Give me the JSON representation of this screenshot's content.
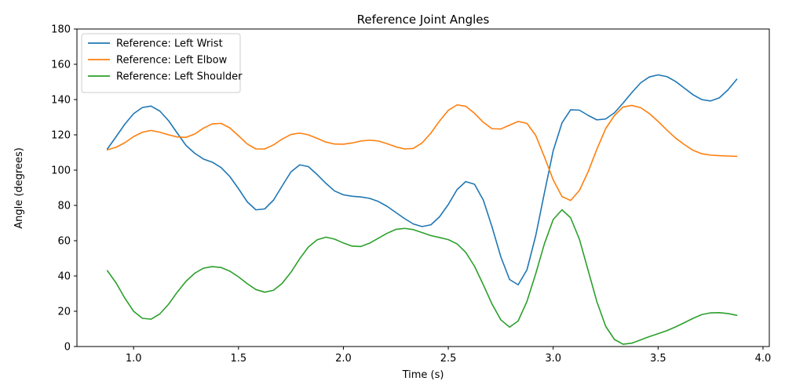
{
  "chart_data": {
    "type": "line",
    "title": "Reference Joint Angles",
    "xlabel": "Time (s)",
    "ylabel": "Angle (degrees)",
    "xlim": [
      0.73,
      4.03
    ],
    "ylim": [
      0,
      180
    ],
    "xticks": [
      1.0,
      1.5,
      2.0,
      2.5,
      3.0,
      3.5,
      4.0
    ],
    "xtick_labels": [
      "1.0",
      "1.5",
      "2.0",
      "2.5",
      "3.0",
      "3.5",
      "4.0"
    ],
    "yticks": [
      0,
      20,
      40,
      60,
      80,
      100,
      120,
      140,
      160,
      180
    ],
    "ytick_labels": [
      "0",
      "20",
      "40",
      "60",
      "80",
      "100",
      "120",
      "140",
      "160",
      "180"
    ],
    "grid": false,
    "legend": "top-left",
    "x": [
      0.875,
      0.917,
      0.958,
      1.0,
      1.042,
      1.083,
      1.125,
      1.167,
      1.208,
      1.25,
      1.292,
      1.333,
      1.375,
      1.417,
      1.458,
      1.5,
      1.542,
      1.583,
      1.625,
      1.667,
      1.708,
      1.75,
      1.792,
      1.833,
      1.875,
      1.917,
      1.958,
      2.0,
      2.042,
      2.083,
      2.125,
      2.167,
      2.208,
      2.25,
      2.292,
      2.333,
      2.375,
      2.417,
      2.458,
      2.5,
      2.542,
      2.583,
      2.625,
      2.667,
      2.708,
      2.75,
      2.792,
      2.833,
      2.875,
      2.917,
      2.958,
      3.0,
      3.042,
      3.083,
      3.125,
      3.167,
      3.208,
      3.25,
      3.292,
      3.333,
      3.375,
      3.417,
      3.458,
      3.5,
      3.542,
      3.583,
      3.625,
      3.667,
      3.708,
      3.75,
      3.792,
      3.833,
      3.875
    ],
    "series": [
      {
        "name": "Reference: Left Wrist",
        "color": "#1f77b4",
        "values": [
          112,
          119,
          126,
          132,
          135.5,
          136.3,
          133.5,
          128,
          121,
          114,
          109.5,
          106.3,
          104.5,
          101.5,
          96.5,
          89.5,
          82,
          77.5,
          78,
          83,
          91,
          99,
          103,
          102,
          97.5,
          92.5,
          88.2,
          86,
          85.2,
          84.8,
          84,
          82.2,
          79.5,
          76,
          72.5,
          69.5,
          68,
          69,
          73.5,
          80.5,
          89,
          93.5,
          92,
          83,
          68,
          51,
          38,
          35,
          43.5,
          63,
          87,
          111,
          126.8,
          134.2,
          134,
          131,
          128.5,
          129,
          132.5,
          138,
          144,
          149.5,
          152.8,
          154,
          153,
          150.3,
          146.5,
          142.7,
          140,
          139.2,
          141,
          145.5,
          151.5
        ]
      },
      {
        "name": "Reference: Left Elbow",
        "color": "#ff7f0e",
        "values": [
          111.5,
          113,
          115.5,
          119,
          121.5,
          122.5,
          121.5,
          120,
          118.8,
          118.6,
          120.5,
          123.8,
          126.2,
          126.5,
          124,
          119.5,
          114.8,
          112,
          112,
          114.3,
          117.6,
          120.2,
          121,
          120,
          118,
          115.9,
          114.8,
          114.7,
          115.4,
          116.5,
          117,
          116.5,
          115,
          113.2,
          112,
          112.3,
          115.4,
          121,
          127.8,
          133.9,
          137,
          136.2,
          132.2,
          127.1,
          123.5,
          123.3,
          125.5,
          127.6,
          126.5,
          119.6,
          107.6,
          94.5,
          85,
          82.8,
          88.5,
          99.2,
          111.8,
          123.5,
          131,
          135.8,
          136.7,
          135.4,
          132.1,
          127.6,
          122.7,
          118.2,
          114.5,
          111.2,
          109.3,
          108.5,
          108.2,
          108,
          107.8
        ]
      },
      {
        "name": "Reference: Left Shoulder",
        "color": "#2ca02c",
        "values": [
          43,
          36,
          27.5,
          20,
          16,
          15.5,
          18.5,
          24,
          30.8,
          37,
          41.6,
          44.4,
          45.3,
          44.8,
          42.8,
          39.5,
          35.6,
          32.3,
          30.8,
          31.9,
          35.8,
          42.1,
          49.8,
          56.4,
          60.5,
          62,
          60.9,
          58.7,
          56.9,
          56.7,
          58.6,
          61.4,
          64.2,
          66.4,
          67,
          66.3,
          64.6,
          62.9,
          61.8,
          60.6,
          58.2,
          53.4,
          45.5,
          35,
          24.2,
          15.2,
          11,
          14.5,
          25.6,
          41.4,
          58.2,
          72,
          77.5,
          73,
          60.8,
          43,
          25.5,
          11.5,
          4,
          1.3,
          1.9,
          3.8,
          5.6,
          7.3,
          9,
          11.1,
          13.5,
          16,
          18.1,
          19.1,
          19.2,
          18.7,
          17.7
        ]
      }
    ]
  }
}
